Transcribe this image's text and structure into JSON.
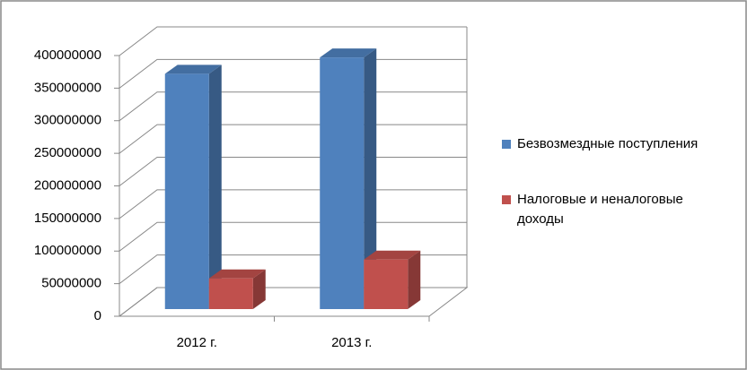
{
  "chart_data": {
    "type": "bar3d",
    "categories": [
      "2012 г.",
      "2013 г."
    ],
    "series": [
      {
        "name": "Безвозмездные поступления",
        "color": "#4f81bd",
        "values": [
          361000000,
          386000000
        ]
      },
      {
        "name": "Налоговые и неналоговые доходы",
        "color": "#c0504d",
        "values": [
          47000000,
          76000000
        ]
      }
    ],
    "ylim": [
      0,
      400000000
    ],
    "yticks": [
      0,
      50000000,
      100000000,
      150000000,
      200000000,
      250000000,
      300000000,
      350000000,
      400000000
    ],
    "grid": true,
    "legend": "right"
  }
}
